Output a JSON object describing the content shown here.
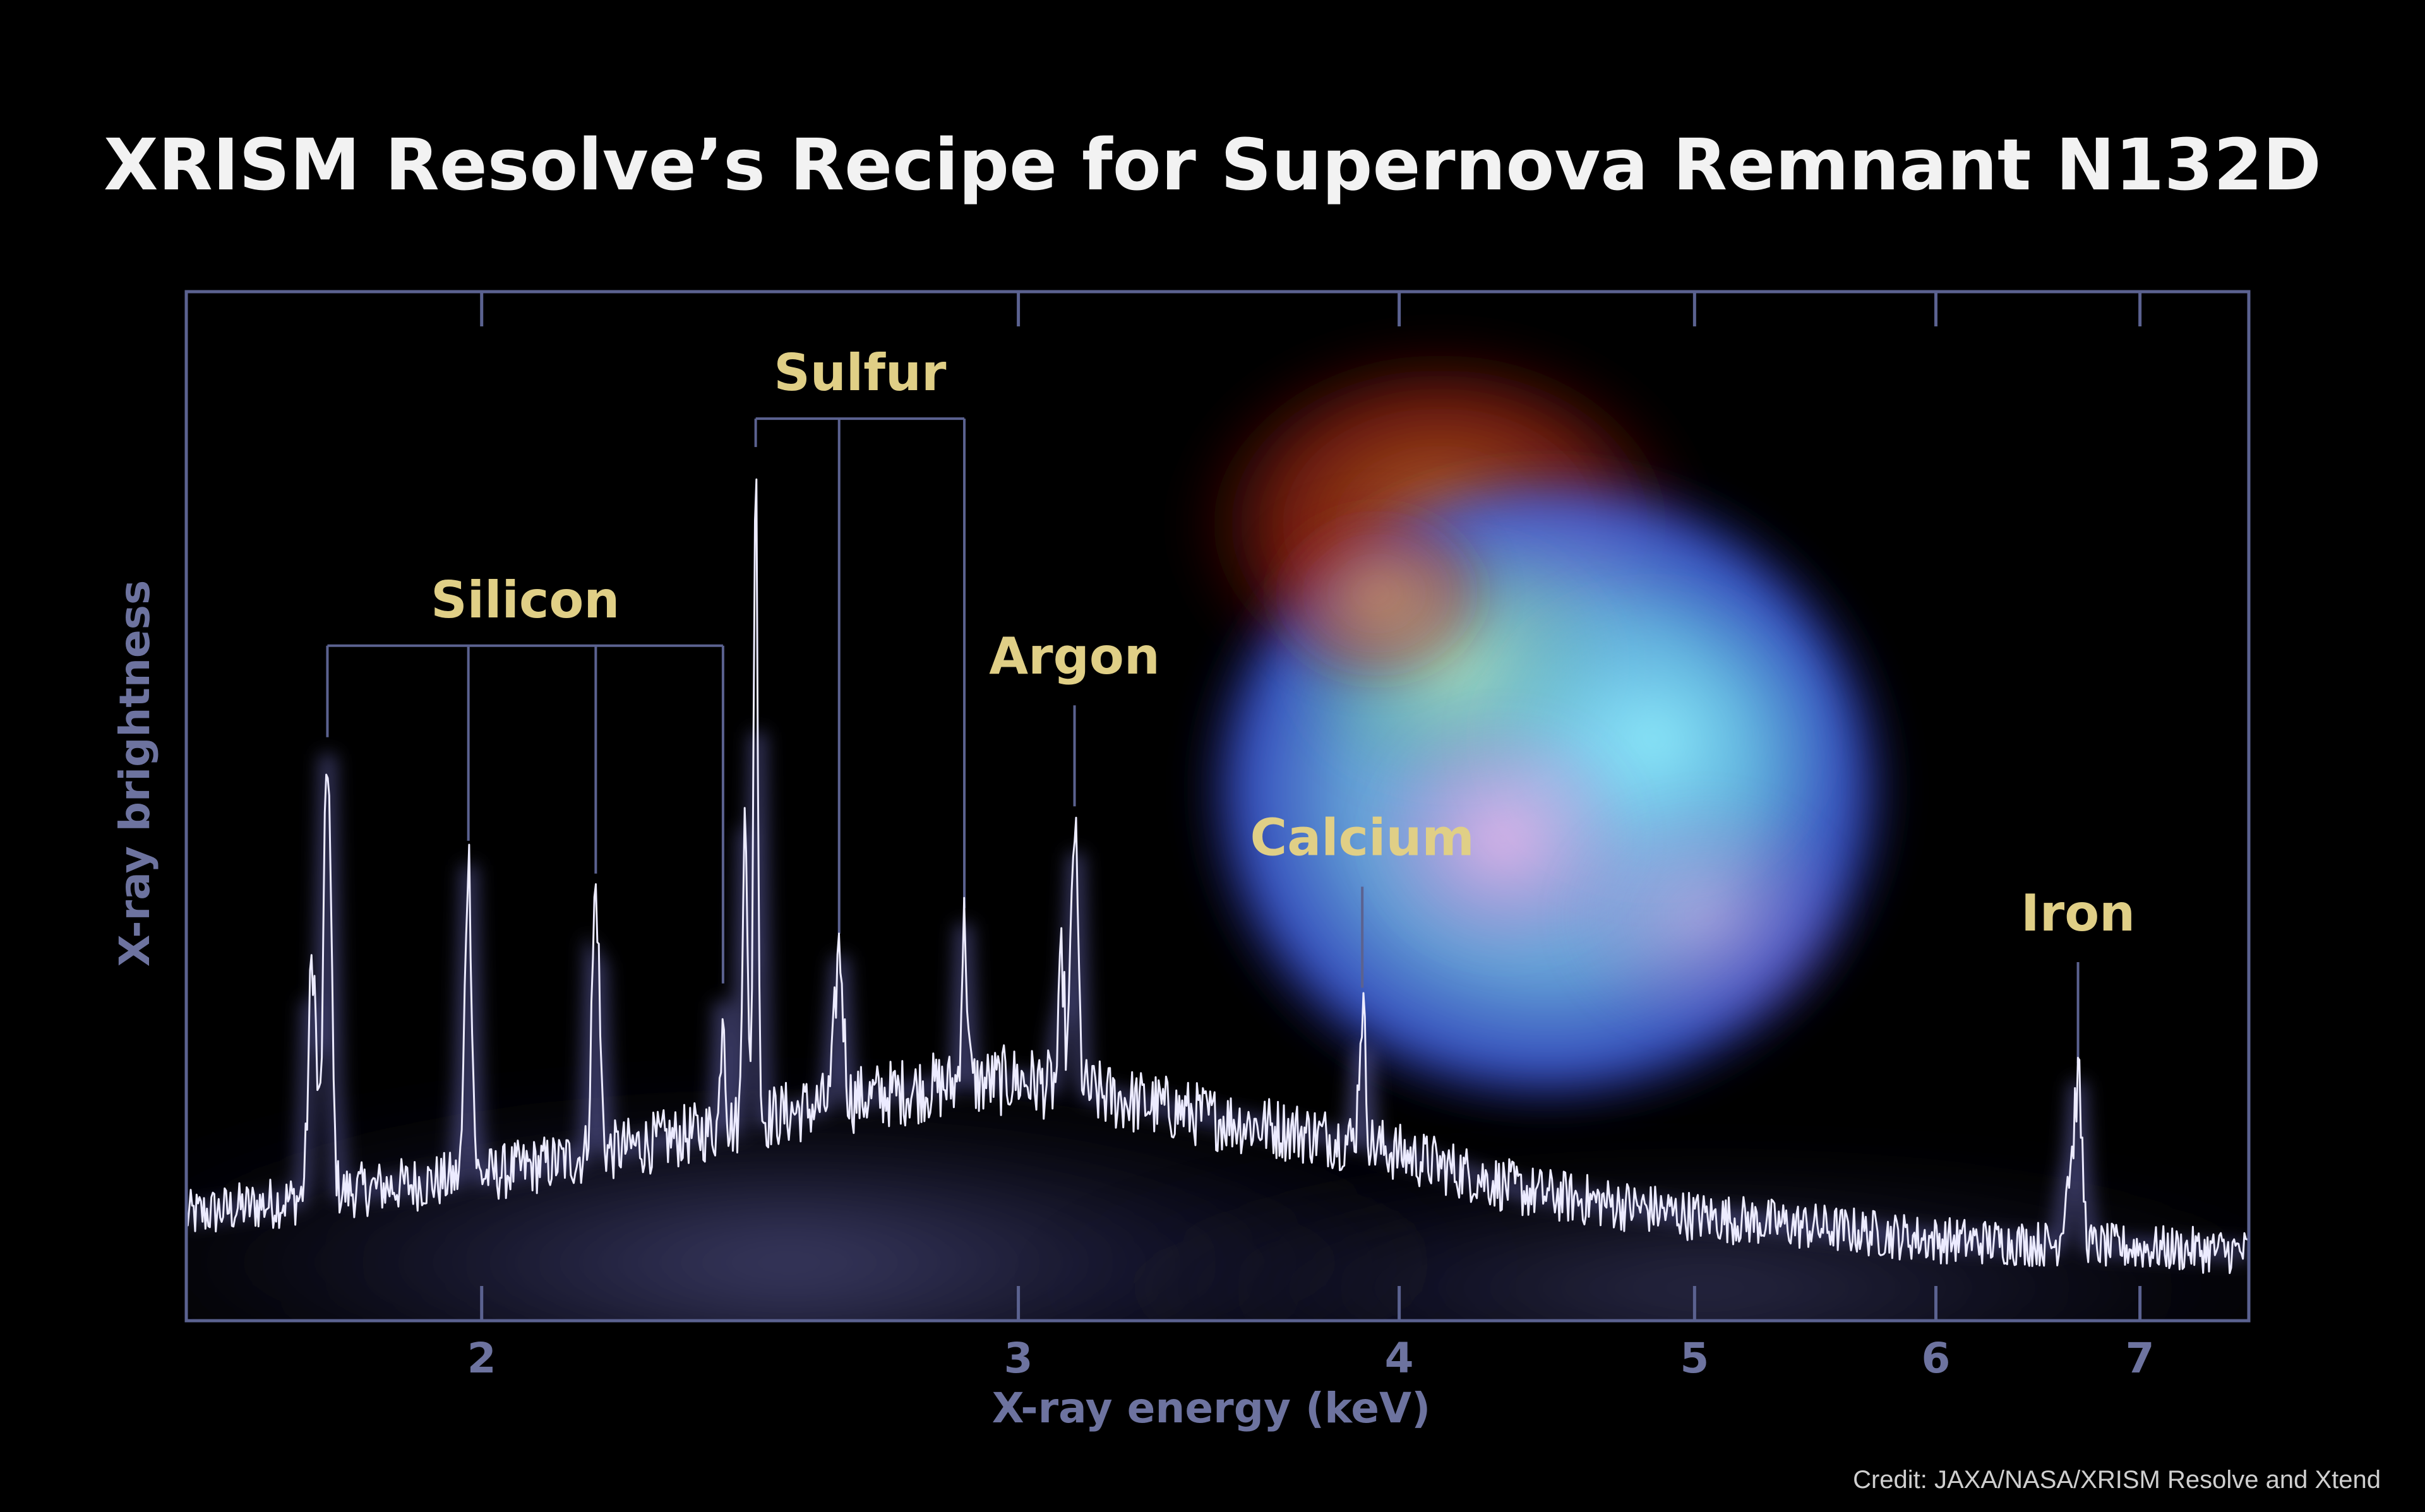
{
  "colors": {
    "background": "#000000",
    "frame": "#5b6290",
    "axis_text": "#6d739f",
    "title": "#f2f2f2",
    "label_gold": "#e0cf86",
    "spectrum": "#ecebff",
    "glow": "#6a6ab8",
    "credit": "#cfcfcf"
  },
  "credit": "Credit: JAXA/NASA/XRISM Resolve and Xtend",
  "chart_data": {
    "type": "line",
    "title": "XRISM Resolve’s Recipe for Supernova Remnant N132D",
    "xlabel": "X-ray energy (keV)",
    "ylabel": "X-ray brightness",
    "x_scale": "log",
    "xlim": [
      1.6,
      7.6
    ],
    "ylim": [
      0,
      1
    ],
    "grid": false,
    "ticks": [
      {
        "value": 2,
        "label": "2"
      },
      {
        "value": 3,
        "label": "3"
      },
      {
        "value": 4,
        "label": "4"
      },
      {
        "value": 5,
        "label": "5"
      },
      {
        "value": 6,
        "label": "6"
      },
      {
        "value": 7,
        "label": "7"
      }
    ],
    "continuum": [
      [
        1.6,
        0.09
      ],
      [
        1.8,
        0.12
      ],
      [
        2.0,
        0.14
      ],
      [
        2.2,
        0.17
      ],
      [
        2.4,
        0.2
      ],
      [
        2.6,
        0.23
      ],
      [
        2.8,
        0.25
      ],
      [
        3.0,
        0.26
      ],
      [
        3.2,
        0.24
      ],
      [
        3.5,
        0.21
      ],
      [
        3.9,
        0.18
      ],
      [
        4.4,
        0.12
      ],
      [
        5.0,
        0.09
      ],
      [
        6.0,
        0.06
      ],
      [
        7.0,
        0.05
      ],
      [
        7.6,
        0.045
      ]
    ],
    "lines": [
      {
        "energy": 1.78,
        "height": 0.55,
        "width": 0.005
      },
      {
        "energy": 1.76,
        "height": 0.3,
        "width": 0.005
      },
      {
        "energy": 1.98,
        "height": 0.4,
        "width": 0.005
      },
      {
        "energy": 2.18,
        "height": 0.33,
        "width": 0.006
      },
      {
        "energy": 2.4,
        "height": 0.16,
        "width": 0.004
      },
      {
        "energy": 2.44,
        "height": 0.43,
        "width": 0.004
      },
      {
        "energy": 2.46,
        "height": 0.82,
        "width": 0.004
      },
      {
        "energy": 2.62,
        "height": 0.19,
        "width": 0.008
      },
      {
        "energy": 2.88,
        "height": 0.2,
        "width": 0.006
      },
      {
        "energy": 3.13,
        "height": 0.33,
        "width": 0.008
      },
      {
        "energy": 3.1,
        "height": 0.16,
        "width": 0.006
      },
      {
        "energy": 3.89,
        "height": 0.17,
        "width": 0.009
      },
      {
        "energy": 6.68,
        "height": 0.2,
        "width": 0.02
      },
      {
        "energy": 6.63,
        "height": 0.08,
        "width": 0.02
      }
    ],
    "annotations": [
      {
        "element": "Silicon",
        "bracket": true,
        "line_energies": [
          1.78,
          1.98,
          2.18,
          2.4
        ]
      },
      {
        "element": "Sulfur",
        "bracket": true,
        "line_energies": [
          2.46,
          2.62,
          2.88
        ]
      },
      {
        "element": "Argon",
        "bracket": false,
        "line_energies": [
          3.13
        ]
      },
      {
        "element": "Calcium",
        "bracket": false,
        "line_energies": [
          3.89
        ]
      },
      {
        "element": "Iron",
        "bracket": false,
        "line_energies": [
          6.68
        ]
      }
    ]
  }
}
